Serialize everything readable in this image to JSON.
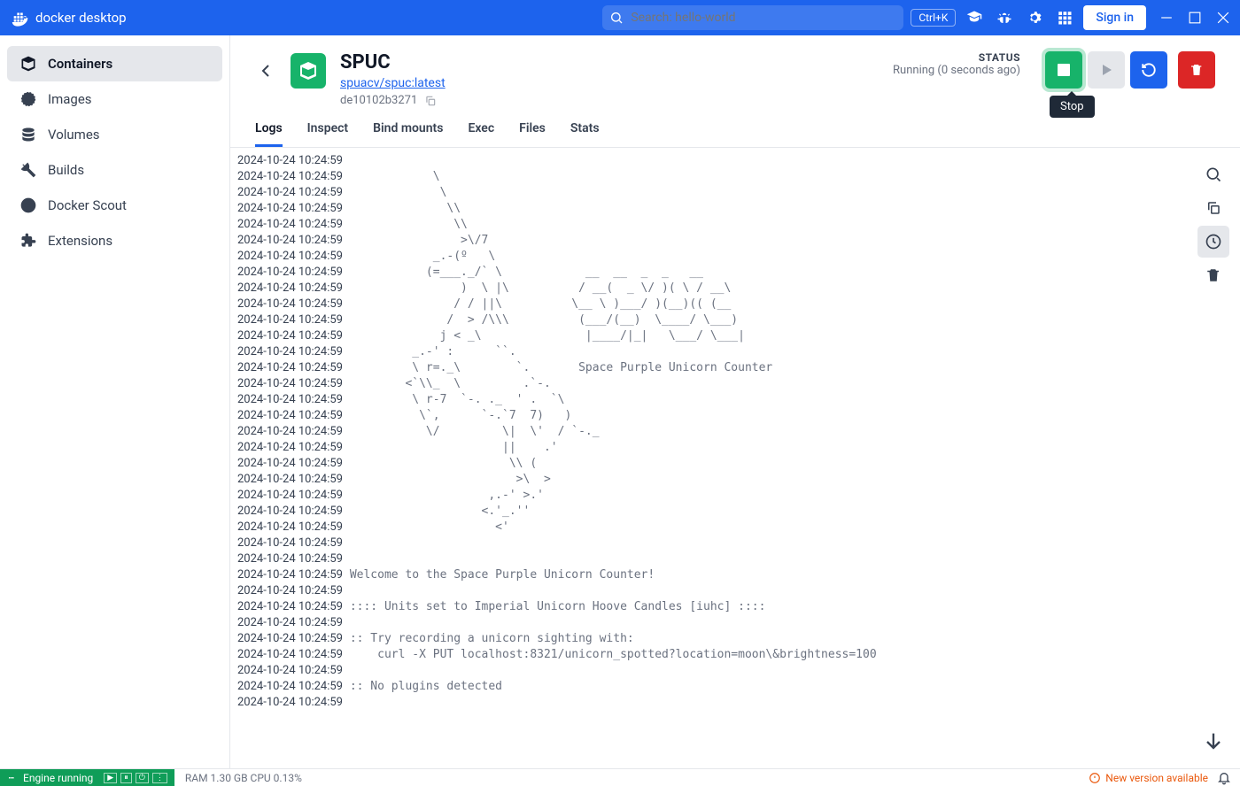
{
  "titlebar": {
    "logo_text": "docker desktop",
    "search_placeholder": "Search: hello-world",
    "kbd_shortcut": "Ctrl+K",
    "signin": "Sign in"
  },
  "sidebar": {
    "items": [
      {
        "label": "Containers",
        "icon": "containers"
      },
      {
        "label": "Images",
        "icon": "images"
      },
      {
        "label": "Volumes",
        "icon": "volumes"
      },
      {
        "label": "Builds",
        "icon": "builds"
      },
      {
        "label": "Docker Scout",
        "icon": "scout"
      },
      {
        "label": "Extensions",
        "icon": "extensions"
      }
    ]
  },
  "container": {
    "name": "SPUC",
    "image": "spuacv/spuc:latest",
    "id": "de10102b3271",
    "status_label": "STATUS",
    "status_text": "Running (0 seconds ago)",
    "stop_tooltip": "Stop"
  },
  "tabs": [
    "Logs",
    "Inspect",
    "Bind mounts",
    "Exec",
    "Files",
    "Stats"
  ],
  "logs": {
    "timestamp": "2024-10-24 10:24:59",
    "lines": [
      "",
      "            \\",
      "             \\",
      "              \\\\",
      "               \\\\",
      "                >\\/7",
      "            _.-(º   \\",
      "           (=___._/` \\            __  __  _  _   __   ",
      "                )  \\ |\\          / __(  _ \\/ )( \\ / __\\ ",
      "               / / ||\\          \\__ \\ )___/ )(__)(( (__ ",
      "              /  > /\\\\\\          (___/(__)  \\____/ \\___)",
      "             j < _\\               |____/|_|   \\___/ \\___|",
      "         _.-' :      ``.",
      "         \\ r=._\\        `.       Space Purple Unicorn Counter",
      "        <`\\\\_  \\         .`-.",
      "         \\ r-7  `-. ._  ' .  `\\",
      "          \\`,      `-.`7  7)   )",
      "           \\/         \\|  \\'  / `-._",
      "                      ||    .'",
      "                       \\\\ (",
      "                        >\\  >",
      "                    ,.-' >.'",
      "                   <.'_.''",
      "                     <'",
      "",
      "",
      "Welcome to the Space Purple Unicorn Counter!",
      "",
      ":::: Units set to Imperial Unicorn Hoove Candles [iuhc] ::::",
      "",
      ":: Try recording a unicorn sighting with:",
      "    curl -X PUT localhost:8321/unicorn_spotted?location=moon\\&brightness=100",
      "",
      ":: No plugins detected",
      ""
    ]
  },
  "footer": {
    "engine": "Engine running",
    "stats": "RAM 1.30 GB  CPU 0.13%",
    "new_version": "New version available"
  },
  "colors": {
    "primary": "#1d63ed",
    "green": "#17b36a",
    "red": "#dc2626",
    "orange": "#ea580c"
  }
}
